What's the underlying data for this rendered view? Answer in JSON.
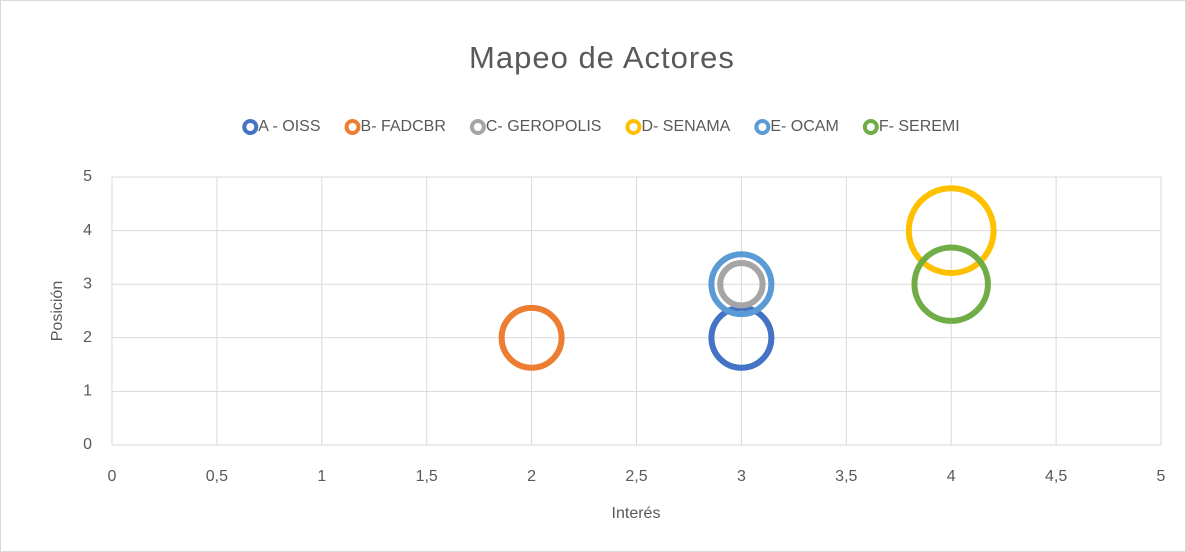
{
  "chart_data": {
    "type": "bubble",
    "title": "Mapeo de Actores",
    "x_label": "Interés",
    "y_label": "Posición",
    "series": [
      {
        "name": "A - OISS",
        "color": "#4472c4",
        "x": [
          3
        ],
        "values": [
          2
        ],
        "sizes": [
          2
        ]
      },
      {
        "name": "B- FADCBR",
        "color": "#ed7d31",
        "x": [
          2
        ],
        "values": [
          2
        ],
        "sizes": [
          2
        ]
      },
      {
        "name": "C- GEROPOLIS",
        "color": "#a5a5a5",
        "x": [
          3
        ],
        "values": [
          3
        ],
        "sizes": [
          1
        ]
      },
      {
        "name": "D- SENAMA",
        "color": "#ffc000",
        "x": [
          4
        ],
        "values": [
          4
        ],
        "sizes": [
          4
        ]
      },
      {
        "name": "E- OCAM",
        "color": "#5b9bd5",
        "x": [
          3
        ],
        "values": [
          3
        ],
        "sizes": [
          2
        ]
      },
      {
        "name": "F- SEREMI",
        "color": "#70ad47",
        "x": [
          4
        ],
        "values": [
          3
        ],
        "sizes": [
          3
        ]
      }
    ],
    "xlim": [
      0,
      5
    ],
    "xticks": [
      0,
      {
        "value": 0.5,
        "label": "0,5"
      },
      1,
      {
        "value": 1.5,
        "label": "1,5"
      },
      2,
      {
        "value": 2.5,
        "label": "2,5"
      },
      3,
      {
        "value": 3.5,
        "label": "3,5"
      },
      4,
      {
        "value": 4.5,
        "label": "4,5"
      },
      5
    ],
    "ylim": [
      0,
      5
    ],
    "yticks": [
      0,
      1,
      2,
      3,
      4,
      5
    ],
    "grid": true,
    "legend": "top"
  }
}
